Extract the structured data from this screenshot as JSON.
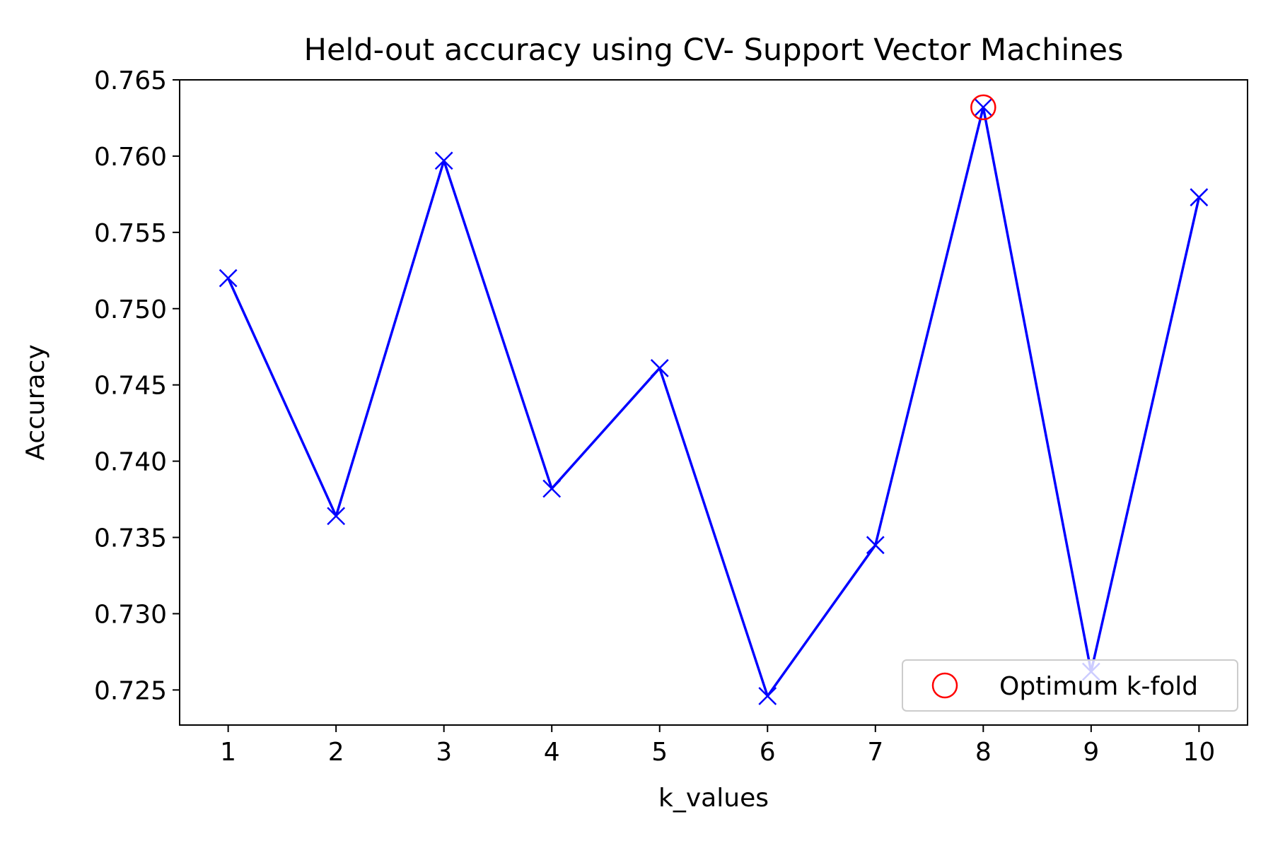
{
  "chart_data": {
    "type": "line",
    "title": "Held-out accuracy using CV- Support Vector Machines",
    "xlabel": "k_values",
    "ylabel": "Accuracy",
    "x": [
      1,
      2,
      3,
      4,
      5,
      6,
      7,
      8,
      9,
      10
    ],
    "xticks": [
      "1",
      "2",
      "3",
      "4",
      "5",
      "6",
      "7",
      "8",
      "9",
      "10"
    ],
    "xlim": [
      0.55,
      10.45
    ],
    "ylim": [
      0.7227,
      0.765
    ],
    "yticks": [
      "0.725",
      "0.730",
      "0.735",
      "0.740",
      "0.745",
      "0.750",
      "0.755",
      "0.760",
      "0.765"
    ],
    "series": [
      {
        "values": [
          0.752,
          0.7364,
          0.7597,
          0.7382,
          0.7461,
          0.7246,
          0.7345,
          0.7632,
          0.7262,
          0.7573
        ],
        "color": "#0000ff",
        "marker": "x"
      }
    ],
    "highlight": {
      "name": "Optimum k-fold",
      "x": 8,
      "y": 0.7632,
      "color": "#ff0000",
      "marker": "circle-open"
    },
    "legend": {
      "entries": [
        "Optimum k-fold"
      ],
      "placement": "lower-right"
    },
    "grid": false
  }
}
